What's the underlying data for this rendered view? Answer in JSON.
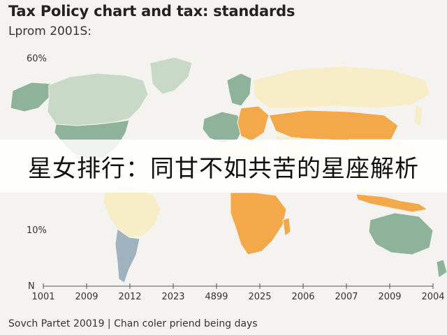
{
  "title": "Tax Policy chart and tax: standards",
  "subtitle": "Lprom 2001S:",
  "y_axis": {
    "labels": [
      "60%",
      "10%",
      "N"
    ]
  },
  "x_axis": {
    "ticks": [
      "1001",
      "2009",
      "2012",
      "2023",
      "4899",
      "2025",
      "2006",
      "2007",
      "2009",
      "2004"
    ]
  },
  "banner": {
    "text": "星女排行：同甘不如共苦的星座解析"
  },
  "footer": "Sovch Partet 20019 | Chan coler priend being days",
  "colors": {
    "background": "#f4f3ef",
    "green": "#8fb39a",
    "light_green": "#c9d9c7",
    "cream": "#f7eec7",
    "orange": "#f3a94a",
    "blue": "#9fb2bd"
  }
}
